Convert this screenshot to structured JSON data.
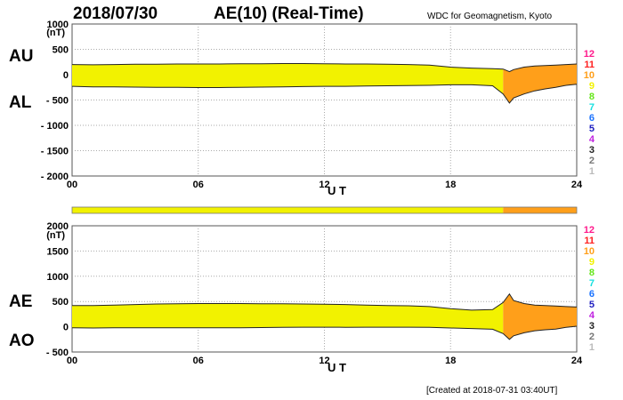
{
  "header": {
    "date": "2018/07/30",
    "title": "AE(10) (Real-Time)",
    "source": "WDC for Geomagnetism, Kyoto"
  },
  "footer": {
    "created": "[Created at 2018-07-31 03:40UT]"
  },
  "color_legend": {
    "labels": [
      "12",
      "11",
      "10",
      "9",
      "8",
      "7",
      "6",
      "5",
      "4",
      "3",
      "2",
      "1"
    ],
    "colors": [
      "#ff1a8c",
      "#ff2020",
      "#ff9f1a",
      "#f2f200",
      "#66e61a",
      "#19e0e0",
      "#1a73ff",
      "#2020c0",
      "#c020e0",
      "#222222",
      "#777777",
      "#bbbbbb"
    ]
  },
  "station_count_bar": {
    "segments": [
      {
        "from": 0,
        "to": 20.5,
        "stations": 9
      },
      {
        "from": 20.5,
        "to": 24,
        "stations": 10
      }
    ]
  },
  "chart_data": [
    {
      "type": "area",
      "left_labels": [
        "AU",
        "AL"
      ],
      "ylabel": "(nT)",
      "xlabel": "U T",
      "xlim": [
        0,
        24
      ],
      "ylim": [
        -2000,
        1000
      ],
      "yticks": [
        1000,
        500,
        0,
        -500,
        -1000,
        -1500,
        -2000
      ],
      "ytick_labels": [
        "1000",
        "500",
        "0",
        "- 500",
        "- 1000",
        "- 1500",
        "- 2000"
      ],
      "xticks": [
        0,
        6,
        12,
        18,
        24
      ],
      "xtick_labels": [
        "00",
        "06",
        "12",
        "18",
        "24"
      ],
      "x": [
        0,
        1,
        2,
        3,
        4,
        5,
        6,
        7,
        8,
        9,
        10,
        11,
        12,
        13,
        14,
        15,
        16,
        17,
        18,
        19,
        20,
        20.5,
        20.8,
        21,
        21.5,
        22,
        22.5,
        23,
        23.5,
        24
      ],
      "upper": [
        200,
        195,
        200,
        205,
        205,
        210,
        210,
        210,
        215,
        215,
        220,
        220,
        215,
        210,
        210,
        205,
        200,
        190,
        150,
        130,
        120,
        110,
        60,
        100,
        150,
        170,
        180,
        190,
        200,
        210
      ],
      "lower": [
        -230,
        -240,
        -240,
        -245,
        -250,
        -250,
        -255,
        -255,
        -250,
        -245,
        -240,
        -235,
        -230,
        -230,
        -225,
        -220,
        -215,
        -210,
        -200,
        -200,
        -220,
        -380,
        -560,
        -460,
        -380,
        -320,
        -280,
        -250,
        -210,
        -190
      ],
      "fill_segments": [
        {
          "from": 0,
          "to": 20.5,
          "stations": 9
        },
        {
          "from": 20.5,
          "to": 24,
          "stations": 10
        }
      ]
    },
    {
      "type": "area",
      "left_labels": [
        "AE",
        "AO"
      ],
      "ylabel": "(nT)",
      "xlabel": "U T",
      "xlim": [
        0,
        24
      ],
      "ylim": [
        -500,
        2000
      ],
      "yticks": [
        2000,
        1500,
        1000,
        500,
        0,
        -500
      ],
      "ytick_labels": [
        "2000",
        "1500",
        "1000",
        "500",
        "0",
        "- 500"
      ],
      "xticks": [
        0,
        6,
        12,
        18,
        24
      ],
      "xtick_labels": [
        "00",
        "06",
        "12",
        "18",
        "24"
      ],
      "x": [
        0,
        1,
        2,
        3,
        4,
        5,
        6,
        7,
        8,
        9,
        10,
        11,
        12,
        13,
        14,
        15,
        16,
        17,
        18,
        19,
        20,
        20.5,
        20.8,
        21,
        21.5,
        22,
        22.5,
        23,
        23.5,
        24
      ],
      "upper": [
        420,
        420,
        430,
        440,
        450,
        455,
        460,
        460,
        460,
        455,
        455,
        450,
        445,
        440,
        430,
        420,
        415,
        400,
        360,
        330,
        340,
        480,
        650,
        520,
        460,
        430,
        420,
        410,
        400,
        390
      ],
      "lower": [
        -20,
        -25,
        -20,
        -20,
        -22,
        -20,
        -22,
        -22,
        -20,
        -15,
        -10,
        -8,
        -8,
        -10,
        -8,
        -8,
        -8,
        -10,
        -25,
        -35,
        -50,
        -135,
        -250,
        -180,
        -120,
        -80,
        -60,
        -45,
        -10,
        10
      ],
      "fill_segments": [
        {
          "from": 0,
          "to": 20.5,
          "stations": 9
        },
        {
          "from": 20.5,
          "to": 24,
          "stations": 10
        }
      ]
    }
  ]
}
